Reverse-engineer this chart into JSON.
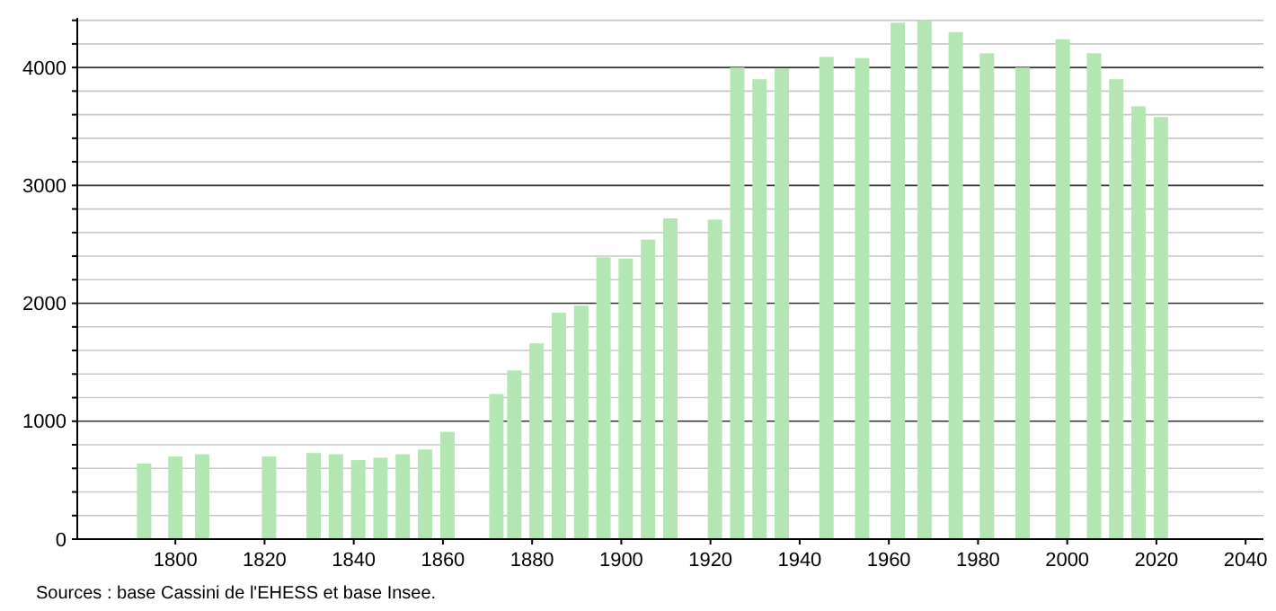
{
  "chart_data": {
    "type": "bar",
    "x": [
      1793,
      1800,
      1806,
      1821,
      1831,
      1836,
      1841,
      1846,
      1851,
      1856,
      1861,
      1872,
      1876,
      1881,
      1886,
      1891,
      1896,
      1901,
      1906,
      1911,
      1921,
      1926,
      1931,
      1936,
      1946,
      1954,
      1962,
      1968,
      1975,
      1982,
      1990,
      1999,
      2006,
      2011,
      2016,
      2021
    ],
    "values": [
      640,
      700,
      720,
      700,
      730,
      720,
      670,
      690,
      720,
      760,
      910,
      1230,
      1430,
      1660,
      1920,
      1980,
      2390,
      2380,
      2540,
      2720,
      2710,
      4000,
      3900,
      3990,
      4090,
      4080,
      4380,
      4400,
      4300,
      4120,
      4000,
      4240,
      4120,
      3900,
      3670,
      3580
    ],
    "color": "#b3e6b3",
    "xlim": [
      1778,
      2044
    ],
    "xticks": [
      1800,
      1820,
      1840,
      1860,
      1880,
      1900,
      1920,
      1940,
      1960,
      1980,
      2000,
      2020,
      2040
    ],
    "ylim": [
      0,
      4420
    ],
    "yticks": [
      0,
      {
        "value": 200,
        "label": null
      },
      {
        "value": 400,
        "label": null
      },
      {
        "value": 600,
        "label": null
      },
      {
        "value": 800,
        "label": null
      },
      1000,
      {
        "value": 1200,
        "label": null
      },
      {
        "value": 1400,
        "label": null
      },
      {
        "value": 1600,
        "label": null
      },
      {
        "value": 1800,
        "label": null
      },
      2000,
      {
        "value": 2200,
        "label": null
      },
      {
        "value": 2400,
        "label": null
      },
      {
        "value": 2600,
        "label": null
      },
      {
        "value": 2800,
        "label": null
      },
      3000,
      {
        "value": 3200,
        "label": null
      },
      {
        "value": 3400,
        "label": null
      },
      {
        "value": 3600,
        "label": null
      },
      {
        "value": 3800,
        "label": null
      },
      4000,
      {
        "value": 4200,
        "label": null
      },
      {
        "value": 4400,
        "label": null
      }
    ],
    "grid": "y",
    "annotations": [
      "Sources : base Cassini de l'EHESS et base Insee."
    ]
  }
}
